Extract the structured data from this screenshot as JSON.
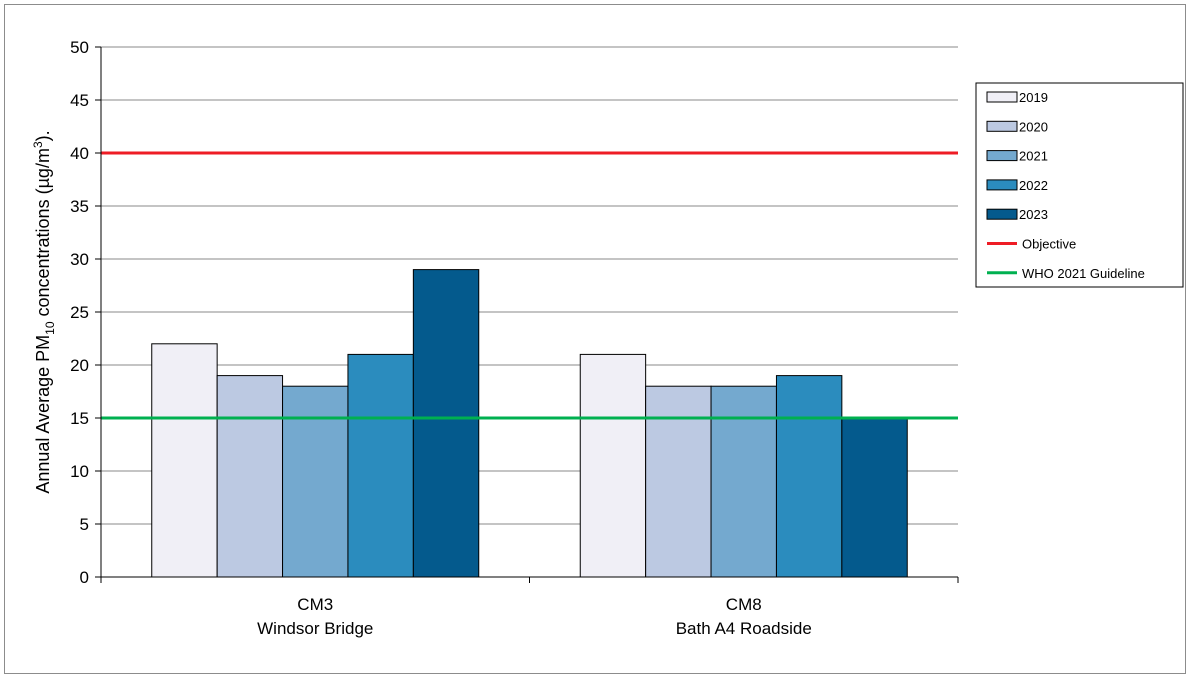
{
  "chart_data": {
    "type": "bar",
    "title": "",
    "ylabel_parts": [
      "Annual Average PM",
      "10",
      " concentrations (µg/m",
      "3",
      ")."
    ],
    "xlabel": "",
    "ylim": [
      0,
      50
    ],
    "yticks": [
      0,
      5,
      10,
      15,
      20,
      25,
      30,
      35,
      40,
      45,
      50
    ],
    "categories": [
      [
        "CM3",
        "Windsor Bridge"
      ],
      [
        "CM8",
        "Bath A4 Roadside"
      ]
    ],
    "series": [
      {
        "name": "2019",
        "color": "#f0eff6",
        "values": [
          22,
          21
        ]
      },
      {
        "name": "2020",
        "color": "#bcc9e2",
        "values": [
          19,
          18
        ]
      },
      {
        "name": "2021",
        "color": "#74a9cf",
        "values": [
          18,
          18
        ]
      },
      {
        "name": "2022",
        "color": "#2b8cbe",
        "values": [
          21,
          19
        ]
      },
      {
        "name": "2023",
        "color": "#045a8d",
        "values": [
          29,
          15
        ]
      }
    ],
    "reference_lines": [
      {
        "name": "Objective",
        "color": "#ee1c25",
        "value": 40
      },
      {
        "name": "WHO 2021 Guideline",
        "color": "#00b050",
        "value": 15
      }
    ],
    "grid": true,
    "legend_position": "right"
  }
}
